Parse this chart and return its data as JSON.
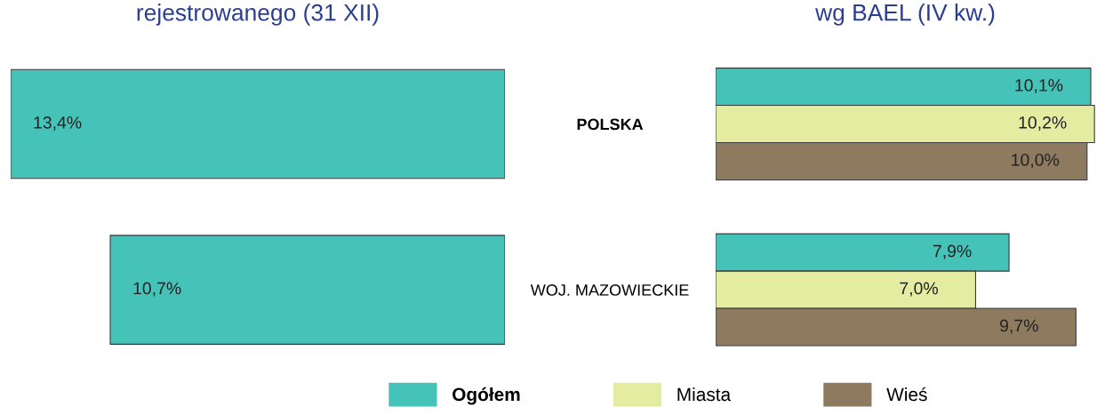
{
  "chart_data": [
    {
      "type": "bar",
      "orientation": "horizontal",
      "title": "rejestrowanego (31 XII)",
      "categories": [
        "POLSKA",
        "WOJ. MAZOWIECKIE"
      ],
      "tick_labels": "y",
      "series": [
        {
          "color": "#46c3b9",
          "values": [
            13.4,
            10.7
          ],
          "value_labels": [
            "13,4%",
            "10,7%"
          ]
        }
      ]
    },
    {
      "type": "bar",
      "orientation": "horizontal",
      "title": "wg BAEL (IV kw.)",
      "categories": [
        null,
        null
      ],
      "tick_labels": false,
      "legend": "bottom",
      "series": [
        {
          "name": "Ogółem",
          "color": "#46c3b9",
          "values": [
            10.1,
            7.9
          ],
          "value_labels": [
            "10,1%",
            "7,9%"
          ]
        },
        {
          "name": "Miasta",
          "color": "#e3eca0",
          "values": [
            10.2,
            7.0
          ],
          "value_labels": [
            "10,2%",
            "7,0%"
          ]
        },
        {
          "name": "Wieś",
          "color": "#8e7a5e",
          "values": [
            10.0,
            9.7
          ],
          "value_labels": [
            "10,0%",
            "9,7%"
          ]
        }
      ]
    }
  ]
}
